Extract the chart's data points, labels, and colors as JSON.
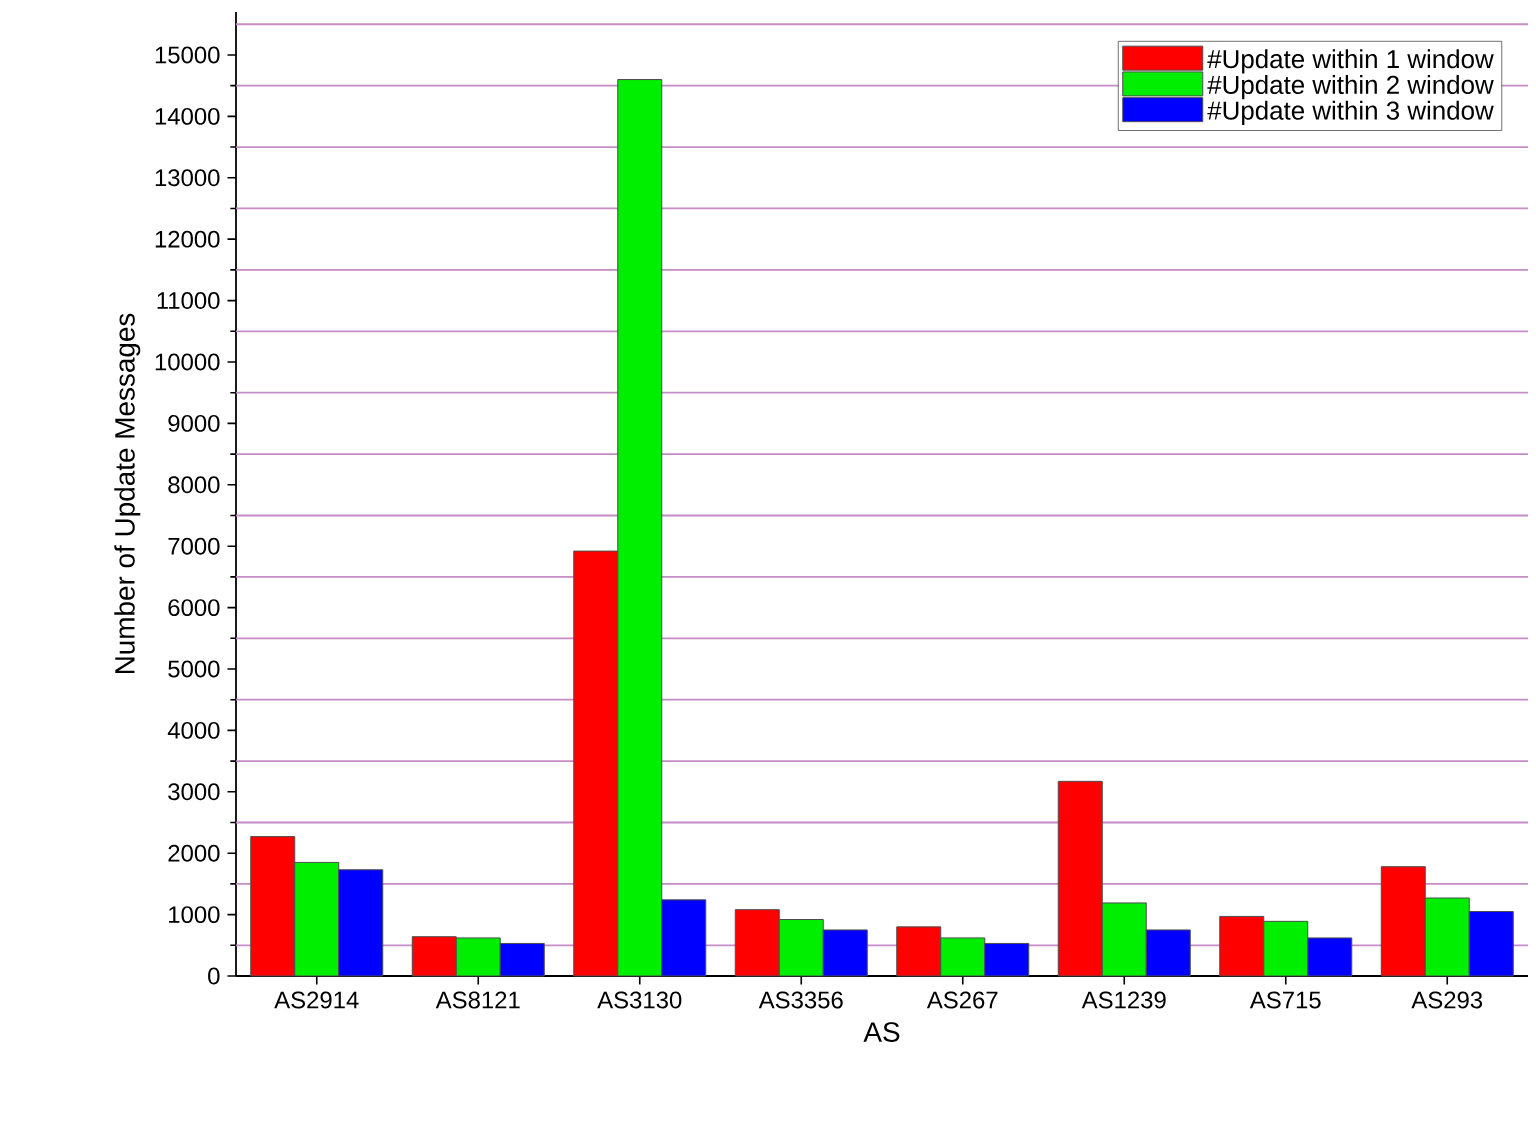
{
  "chart_data": {
    "type": "bar",
    "xlabel": "AS",
    "ylabel": "Number of Update Messages",
    "categories": [
      "AS2914",
      "AS8121",
      "AS3130",
      "AS3356",
      "AS267",
      "AS1239",
      "AS715",
      "AS293"
    ],
    "series": [
      {
        "name": "#Update within 1 window",
        "color": "#ff0000",
        "values": [
          2270,
          640,
          6920,
          1080,
          800,
          3170,
          970,
          1780
        ]
      },
      {
        "name": "#Update within 2 window",
        "color": "#00ee00",
        "values": [
          1850,
          620,
          14600,
          920,
          620,
          1190,
          890,
          1270
        ]
      },
      {
        "name": "#Update within 3 window",
        "color": "#0000ff",
        "values": [
          1730,
          530,
          1240,
          750,
          530,
          750,
          620,
          1050
        ]
      }
    ],
    "ylim": [
      0,
      15700
    ],
    "yticks": [
      0,
      1000,
      2000,
      3000,
      4000,
      5000,
      6000,
      7000,
      8000,
      9000,
      10000,
      11000,
      12000,
      13000,
      14000,
      15000
    ],
    "ref_lines": [
      {
        "axis": "y",
        "value": 500,
        "color": "#c68cc6"
      },
      {
        "axis": "y",
        "value": 1500,
        "color": "#c68cc6"
      },
      {
        "axis": "y",
        "value": 2500,
        "color": "#c68cc6"
      },
      {
        "axis": "y",
        "value": 3500,
        "color": "#c68cc6"
      },
      {
        "axis": "y",
        "value": 4500,
        "color": "#c68cc6"
      },
      {
        "axis": "y",
        "value": 5500,
        "color": "#c68cc6"
      },
      {
        "axis": "y",
        "value": 6500,
        "color": "#c68cc6"
      },
      {
        "axis": "y",
        "value": 7500,
        "color": "#c68cc6"
      },
      {
        "axis": "y",
        "value": 8500,
        "color": "#c68cc6"
      },
      {
        "axis": "y",
        "value": 9500,
        "color": "#c68cc6"
      },
      {
        "axis": "y",
        "value": 10500,
        "color": "#c68cc6"
      },
      {
        "axis": "y",
        "value": 11500,
        "color": "#c68cc6"
      },
      {
        "axis": "y",
        "value": 12500,
        "color": "#c68cc6"
      },
      {
        "axis": "y",
        "value": 13500,
        "color": "#c68cc6"
      },
      {
        "axis": "y",
        "value": 14500,
        "color": "#c68cc6"
      },
      {
        "axis": "y",
        "value": 15500,
        "color": "#c68cc6"
      }
    ],
    "legend": "top right"
  }
}
